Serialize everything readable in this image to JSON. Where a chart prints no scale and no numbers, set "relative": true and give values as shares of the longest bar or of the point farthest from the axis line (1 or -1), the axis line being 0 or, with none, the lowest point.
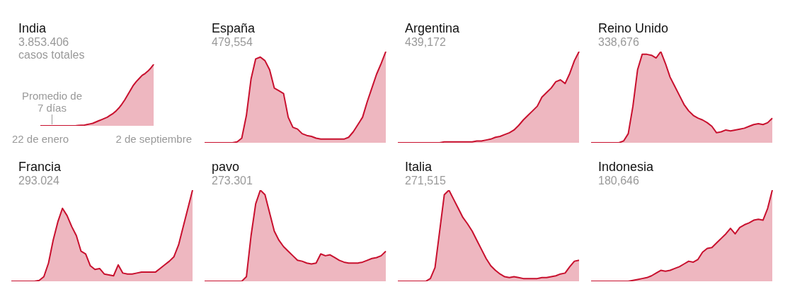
{
  "chart_data": [
    {
      "type": "area",
      "title": "India",
      "subtitle": "3.853.406 casos totales",
      "relative": true,
      "tick_labels": "x",
      "annotations": [
        "Promedio de 7 días"
      ],
      "categories": [
        "22 de enero",
        null,
        null,
        null,
        null,
        null,
        null,
        null,
        null,
        null,
        null,
        null,
        null,
        null,
        null,
        null,
        null,
        null,
        null,
        null,
        null,
        null,
        null,
        null,
        null,
        null,
        null,
        null,
        null,
        null,
        null,
        null,
        null,
        null,
        null,
        null,
        null,
        null,
        null,
        "2 de septiembre"
      ],
      "series": [
        {
          "color": "#c8102e",
          "values": [
            0,
            0,
            0,
            0,
            0,
            0,
            0,
            0,
            0,
            0,
            0,
            0,
            0,
            0.005,
            0.01,
            0.01,
            0.02,
            0.03,
            0.04,
            0.06,
            0.08,
            0.1,
            0.12,
            0.14,
            0.17,
            0.2,
            0.24,
            0.29,
            0.35,
            0.42,
            0.5,
            0.58,
            0.66,
            0.72,
            0.77,
            0.82,
            0.85,
            0.89,
            0.94,
            1
          ]
        }
      ]
    },
    {
      "type": "area",
      "title": "España",
      "subtitle": "479,554",
      "relative": true,
      "tick_labels": false,
      "categories": [
        null,
        null,
        null,
        null,
        null,
        null,
        null,
        null,
        null,
        null,
        null,
        null,
        null,
        null,
        null,
        null,
        null,
        null,
        null,
        null,
        null,
        null,
        null,
        null,
        null,
        null,
        null,
        null,
        null,
        null,
        null,
        null,
        null,
        null,
        null,
        null,
        null,
        null,
        null,
        null
      ],
      "series": [
        {
          "color": "#c8102e",
          "values": [
            0,
            0,
            0,
            0,
            0,
            0,
            0,
            0.01,
            0.05,
            0.3,
            0.7,
            0.92,
            0.94,
            0.9,
            0.8,
            0.6,
            0.57,
            0.54,
            0.28,
            0.17,
            0.15,
            0.1,
            0.08,
            0.07,
            0.05,
            0.04,
            0.04,
            0.04,
            0.04,
            0.04,
            0.04,
            0.06,
            0.12,
            0.2,
            0.28,
            0.45,
            0.6,
            0.75,
            0.87,
            1
          ]
        }
      ]
    },
    {
      "type": "area",
      "title": "Argentina",
      "subtitle": "439,172",
      "relative": true,
      "tick_labels": false,
      "categories": [
        null,
        null,
        null,
        null,
        null,
        null,
        null,
        null,
        null,
        null,
        null,
        null,
        null,
        null,
        null,
        null,
        null,
        null,
        null,
        null,
        null,
        null,
        null,
        null,
        null,
        null,
        null,
        null,
        null,
        null,
        null,
        null,
        null,
        null,
        null,
        null,
        null,
        null,
        null,
        null
      ],
      "series": [
        {
          "color": "#c8102e",
          "values": [
            0,
            0,
            0,
            0,
            0,
            0,
            0,
            0,
            0,
            0,
            0.01,
            0.01,
            0.01,
            0.01,
            0.01,
            0.01,
            0.01,
            0.02,
            0.02,
            0.03,
            0.04,
            0.06,
            0.07,
            0.09,
            0.11,
            0.14,
            0.19,
            0.25,
            0.3,
            0.35,
            0.4,
            0.5,
            0.55,
            0.6,
            0.67,
            0.69,
            0.65,
            0.76,
            0.9,
            1
          ]
        }
      ]
    },
    {
      "type": "area",
      "title": "Reino Unido",
      "subtitle": "338,676",
      "relative": true,
      "tick_labels": false,
      "categories": [
        null,
        null,
        null,
        null,
        null,
        null,
        null,
        null,
        null,
        null,
        null,
        null,
        null,
        null,
        null,
        null,
        null,
        null,
        null,
        null,
        null,
        null,
        null,
        null,
        null,
        null,
        null,
        null,
        null,
        null,
        null,
        null,
        null,
        null,
        null,
        null,
        null,
        null,
        null,
        null
      ],
      "series": [
        {
          "color": "#c8102e",
          "values": [
            0,
            0,
            0,
            0,
            0,
            0,
            0,
            0.02,
            0.1,
            0.4,
            0.8,
            0.97,
            0.97,
            0.96,
            0.93,
            1,
            0.87,
            0.72,
            0.62,
            0.52,
            0.42,
            0.35,
            0.3,
            0.27,
            0.25,
            0.22,
            0.18,
            0.11,
            0.12,
            0.14,
            0.13,
            0.14,
            0.15,
            0.16,
            0.18,
            0.2,
            0.21,
            0.2,
            0.22,
            0.27
          ]
        }
      ]
    },
    {
      "type": "area",
      "title": "Francia",
      "subtitle": "293.024",
      "relative": true,
      "tick_labels": false,
      "categories": [
        null,
        null,
        null,
        null,
        null,
        null,
        null,
        null,
        null,
        null,
        null,
        null,
        null,
        null,
        null,
        null,
        null,
        null,
        null,
        null,
        null,
        null,
        null,
        null,
        null,
        null,
        null,
        null,
        null,
        null,
        null,
        null,
        null,
        null,
        null,
        null,
        null,
        null,
        null,
        null
      ],
      "series": [
        {
          "color": "#c8102e",
          "values": [
            0,
            0,
            0,
            0,
            0,
            0,
            0.01,
            0.05,
            0.2,
            0.45,
            0.65,
            0.8,
            0.72,
            0.6,
            0.5,
            0.33,
            0.3,
            0.17,
            0.13,
            0.14,
            0.08,
            0.07,
            0.06,
            0.18,
            0.09,
            0.08,
            0.08,
            0.09,
            0.1,
            0.1,
            0.1,
            0.1,
            0.14,
            0.18,
            0.22,
            0.27,
            0.4,
            0.6,
            0.8,
            1
          ]
        }
      ]
    },
    {
      "type": "area",
      "title": "pavo",
      "subtitle": "273.301",
      "relative": true,
      "tick_labels": false,
      "categories": [
        null,
        null,
        null,
        null,
        null,
        null,
        null,
        null,
        null,
        null,
        null,
        null,
        null,
        null,
        null,
        null,
        null,
        null,
        null,
        null,
        null,
        null,
        null,
        null,
        null,
        null,
        null,
        null,
        null,
        null,
        null,
        null,
        null,
        null,
        null,
        null,
        null,
        null,
        null,
        null
      ],
      "series": [
        {
          "color": "#c8102e",
          "values": [
            0,
            0,
            0,
            0,
            0,
            0,
            0,
            0,
            0,
            0.05,
            0.5,
            0.85,
            1,
            0.95,
            0.75,
            0.55,
            0.45,
            0.38,
            0.33,
            0.28,
            0.23,
            0.22,
            0.2,
            0.19,
            0.2,
            0.3,
            0.28,
            0.29,
            0.26,
            0.23,
            0.21,
            0.2,
            0.2,
            0.2,
            0.21,
            0.23,
            0.25,
            0.26,
            0.28,
            0.33
          ]
        }
      ]
    },
    {
      "type": "area",
      "title": "Italia",
      "subtitle": "271,515",
      "relative": true,
      "tick_labels": false,
      "categories": [
        null,
        null,
        null,
        null,
        null,
        null,
        null,
        null,
        null,
        null,
        null,
        null,
        null,
        null,
        null,
        null,
        null,
        null,
        null,
        null,
        null,
        null,
        null,
        null,
        null,
        null,
        null,
        null,
        null,
        null,
        null,
        null,
        null,
        null,
        null,
        null,
        null,
        null,
        null,
        null
      ],
      "series": [
        {
          "color": "#c8102e",
          "values": [
            0,
            0,
            0,
            0,
            0,
            0,
            0,
            0.03,
            0.15,
            0.55,
            0.95,
            1,
            0.9,
            0.8,
            0.7,
            0.63,
            0.55,
            0.45,
            0.35,
            0.25,
            0.17,
            0.12,
            0.08,
            0.05,
            0.04,
            0.05,
            0.04,
            0.03,
            0.03,
            0.03,
            0.03,
            0.04,
            0.04,
            0.05,
            0.06,
            0.08,
            0.09,
            0.16,
            0.22,
            0.23
          ]
        }
      ]
    },
    {
      "type": "area",
      "title": "Indonesia",
      "subtitle": "180,646",
      "relative": true,
      "tick_labels": false,
      "categories": [
        null,
        null,
        null,
        null,
        null,
        null,
        null,
        null,
        null,
        null,
        null,
        null,
        null,
        null,
        null,
        null,
        null,
        null,
        null,
        null,
        null,
        null,
        null,
        null,
        null,
        null,
        null,
        null,
        null,
        null,
        null,
        null,
        null,
        null,
        null,
        null,
        null,
        null,
        null,
        null
      ],
      "series": [
        {
          "color": "#c8102e",
          "values": [
            0,
            0,
            0,
            0,
            0,
            0,
            0,
            0,
            0,
            0.01,
            0.02,
            0.03,
            0.04,
            0.06,
            0.09,
            0.12,
            0.11,
            0.12,
            0.14,
            0.16,
            0.19,
            0.22,
            0.21,
            0.24,
            0.32,
            0.36,
            0.37,
            0.42,
            0.47,
            0.52,
            0.58,
            0.52,
            0.59,
            0.62,
            0.64,
            0.67,
            0.68,
            0.67,
            0.8,
            1
          ]
        }
      ]
    }
  ]
}
